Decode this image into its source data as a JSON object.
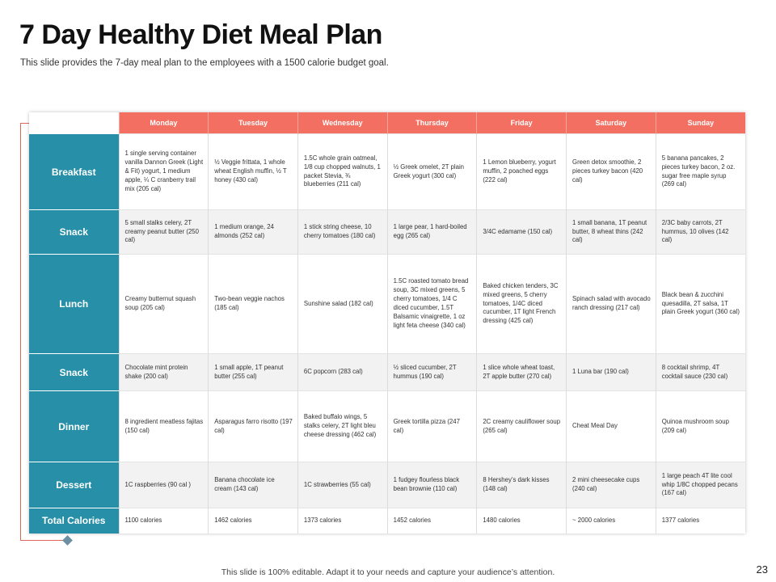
{
  "slide": {
    "title": "7 Day Healthy Diet Meal Plan",
    "subtitle": "This slide provides the 7-day meal plan to the employees with a 1500 calorie budget goal.",
    "footer": "This slide is 100% editable. Adapt it to your needs and capture your audience’s attention.",
    "page_number": "23"
  },
  "colors": {
    "header_bg": "#f26f61",
    "row_header_bg": "#2790a8",
    "frame_line": "#e0665a",
    "diamond": "#6b8fa3"
  },
  "table": {
    "days": [
      "Monday",
      "Tuesday",
      "Wednesday",
      "Thursday",
      "Friday",
      "Saturday",
      "Sunday"
    ],
    "rows": [
      {
        "label": "Breakfast",
        "cells": [
          "1 single serving container vanilla Dannon Greek (Light & Fit) yogurt, 1 medium apple, ¼ C cranberry trail mix (205 cal)",
          "½ Veggie frittata, 1 whole wheat English muffin, ½ T honey (430 cal)",
          "1.5C whole grain oatmeal, 1/8 cup chopped walnuts, 1 packet Stevia, ¾ blueberries (211 cal)",
          "½ Greek omelet, 2T plain Greek yogurt (300 cal)",
          "1 Lemon blueberry, yogurt muffin, 2 poached eggs (222 cal)",
          "Green detox smoothie, 2 pieces turkey bacon (420 cal)",
          "5 banana pancakes, 2 pieces turkey bacon, 2 oz. sugar free maple syrup (269 cal)"
        ]
      },
      {
        "label": "Snack",
        "cells": [
          "5 small stalks celery, 2T creamy peanut butter (250 cal)",
          "1 medium orange, 24 almonds (252 cal)",
          "1 stick string cheese, 10 cherry tomatoes (180 cal)",
          "1 large pear, 1 hard-boiled egg (265 cal)",
          "3/4C edamame (150 cal)",
          "1 small banana, 1T peanut butter, 8 wheat thins (242 cal)",
          "2/3C baby carrots, 2T hummus, 10 olives (142 cal)"
        ]
      },
      {
        "label": "Lunch",
        "cells": [
          "Creamy butternut squash soup (205 cal)",
          "Two-bean veggie nachos (185 cal)",
          "Sunshine salad (182 cal)",
          "1.5C roasted tomato bread soup, 3C mixed greens, 5 cherry tomatoes, 1/4 C diced cucumber, 1.5T Balsamic vinaigrette, 1 oz light feta cheese (340 cal)",
          "Baked chicken tenders, 3C mixed greens, 5 cherry tomatoes, 1/4C diced cucumber, 1T light French dressing (425 cal)",
          "Spinach salad with avocado ranch dressing (217 cal)",
          "Black bean & zucchini quesadilla, 2T salsa, 1T plain Greek yogurt (360 cal)"
        ]
      },
      {
        "label": "Snack",
        "cells": [
          "Chocolate mint protein shake (200 cal)",
          "1 small apple, 1T peanut butter (255 cal)",
          "6C popcorn (283 cal)",
          "½ sliced cucumber, 2T hummus (190 cal)",
          "1 slice whole wheat toast, 2T apple butter (270 cal)",
          "1 Luna bar (190 cal)",
          "8 cocktail shrimp, 4T cocktail sauce (230 cal)"
        ]
      },
      {
        "label": "Dinner",
        "cells": [
          "8 ingredient meatless fajitas (150 cal)",
          "Asparagus farro risotto (197 cal)",
          "Baked buffalo wings, 5 stalks celery, 2T light bleu cheese dressing (462 cal)",
          "Greek tortilla pizza (247 cal)",
          "2C creamy cauliflower soup (265 cal)",
          "Cheat Meal Day",
          "Quinoa mushroom soup (209 cal)"
        ]
      },
      {
        "label": "Dessert",
        "cells": [
          "1C raspberries (90 cal )",
          "Banana chocolate ice cream (143 cal)",
          "1C strawberries (55 cal)",
          "1 fudgey flourless black bean brownie (110 cal)",
          "8 Hershey’s dark kisses (148 cal)",
          "2 mini cheesecake cups (240 cal)",
          "1 large peach 4T lite cool whip 1/8C chopped pecans (167 cal)"
        ]
      },
      {
        "label": "Total Calories",
        "cells": [
          "1100 calories",
          "1462 calories",
          "1373 calories",
          "1452 calories",
          "1480 calories",
          "~ 2000 calories",
          "1377 calories"
        ]
      }
    ]
  }
}
